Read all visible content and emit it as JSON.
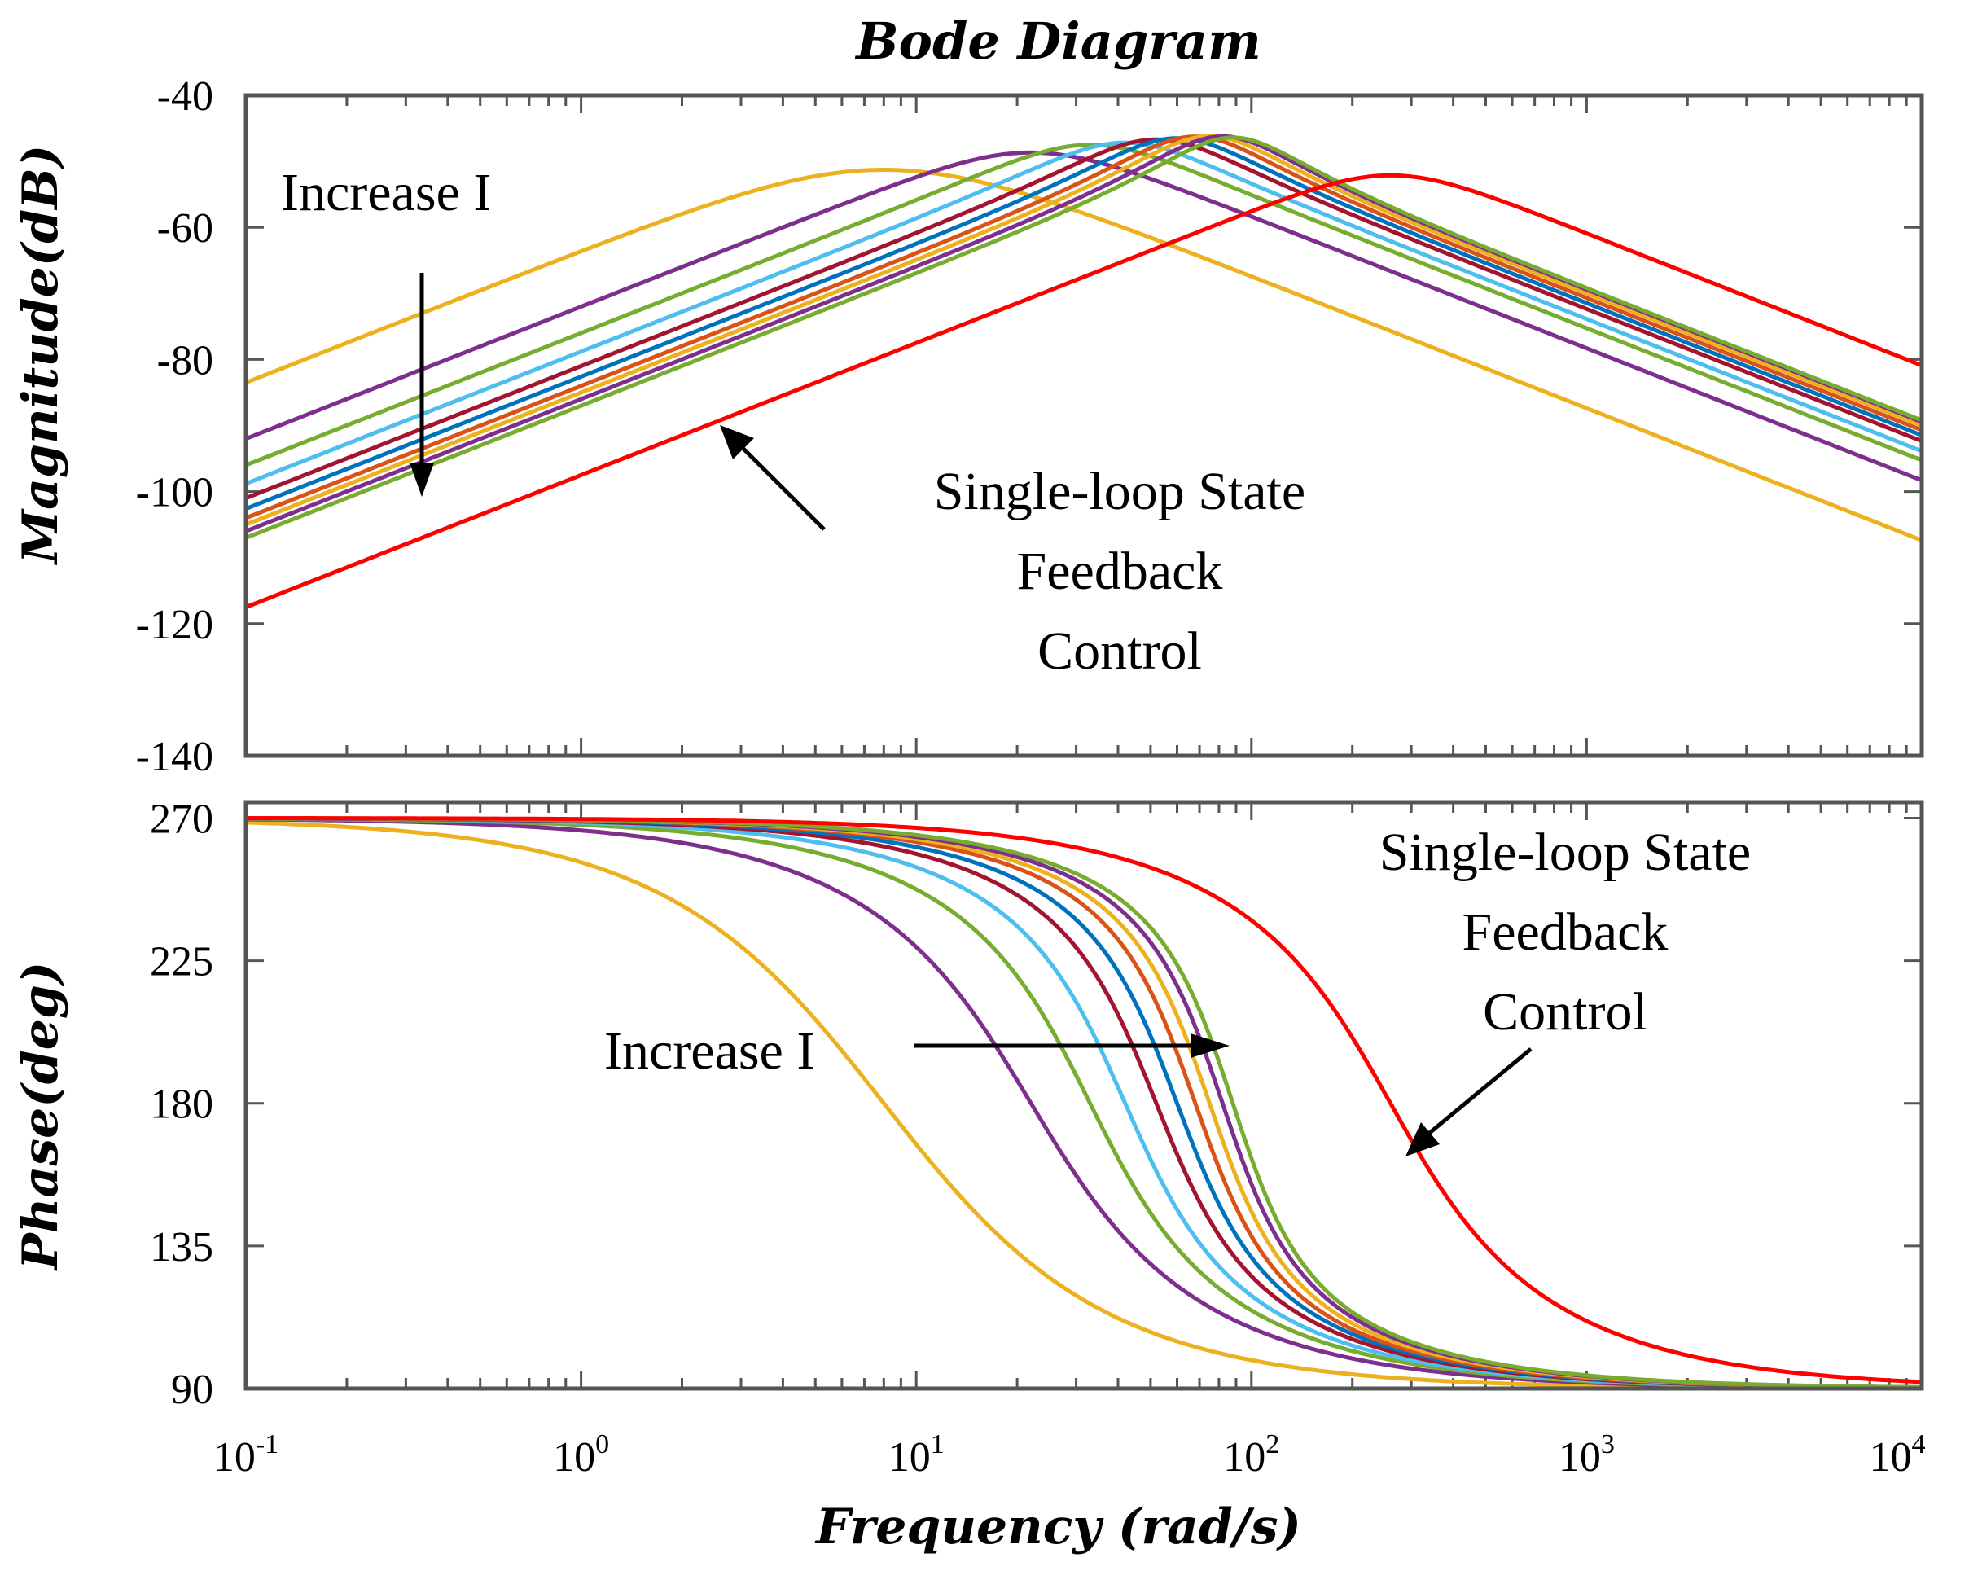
{
  "chart_data": {
    "type": "line",
    "title": "Bode Diagram",
    "xlabel": "Frequency  (rad/s)",
    "xscale": "log",
    "xlim": [
      0.1,
      10000
    ],
    "x_ticks": [
      {
        "base": "10",
        "exp": "-1"
      },
      {
        "base": "10",
        "exp": "0"
      },
      {
        "base": "10",
        "exp": "1"
      },
      {
        "base": "10",
        "exp": "2"
      },
      {
        "base": "10",
        "exp": "3"
      },
      {
        "base": "10",
        "exp": "4"
      }
    ],
    "panels": [
      {
        "ylabel": "Magnitude(dB)",
        "ylim": [
          -140,
          -40
        ],
        "y_ticks": [
          "-40",
          "-60",
          "-80",
          "-100",
          "-120",
          "-140"
        ],
        "annotations": [
          {
            "text": "Increase I"
          },
          {
            "lines": [
              "Single-loop State",
              "Feedback",
              "Control"
            ]
          }
        ]
      },
      {
        "ylabel": "Phase(deg)",
        "ylim": [
          90,
          275
        ],
        "y_ticks": [
          "270",
          "225",
          "180",
          "135",
          "90"
        ],
        "annotations": [
          {
            "text": "Increase I"
          },
          {
            "lines": [
              "Single-loop State",
              "Feedback",
              "Control"
            ]
          }
        ]
      }
    ],
    "series": [
      {
        "color": "#EDB120",
        "gain_db": -83.5,
        "wn": 8.0,
        "zeta": 0.98
      },
      {
        "color": "#7E2F8E",
        "gain_db": -92.0,
        "wn": 22.0,
        "zeta": 0.75
      },
      {
        "color": "#77AC30",
        "gain_db": -96.0,
        "wn": 33.0,
        "zeta": 0.62
      },
      {
        "color": "#4DBEEE",
        "gain_db": -98.8,
        "wn": 42.0,
        "zeta": 0.55
      },
      {
        "color": "#A2142F",
        "gain_db": -101.0,
        "wn": 52.0,
        "zeta": 0.5
      },
      {
        "color": "#0072BD",
        "gain_db": -102.6,
        "wn": 60.0,
        "zeta": 0.47
      },
      {
        "color": "#D95319",
        "gain_db": -104.0,
        "wn": 68.0,
        "zeta": 0.44
      },
      {
        "color": "#EDB120",
        "gain_db": -105.0,
        "wn": 75.0,
        "zeta": 0.43
      },
      {
        "color": "#7E2F8E",
        "gain_db": -106.0,
        "wn": 82.0,
        "zeta": 0.42
      },
      {
        "color": "#77AC30",
        "gain_db": -107.0,
        "wn": 88.0,
        "zeta": 0.41
      },
      {
        "color": "#FF0000",
        "gain_db": -117.5,
        "wn": 260.0,
        "zeta": 0.7
      }
    ]
  }
}
